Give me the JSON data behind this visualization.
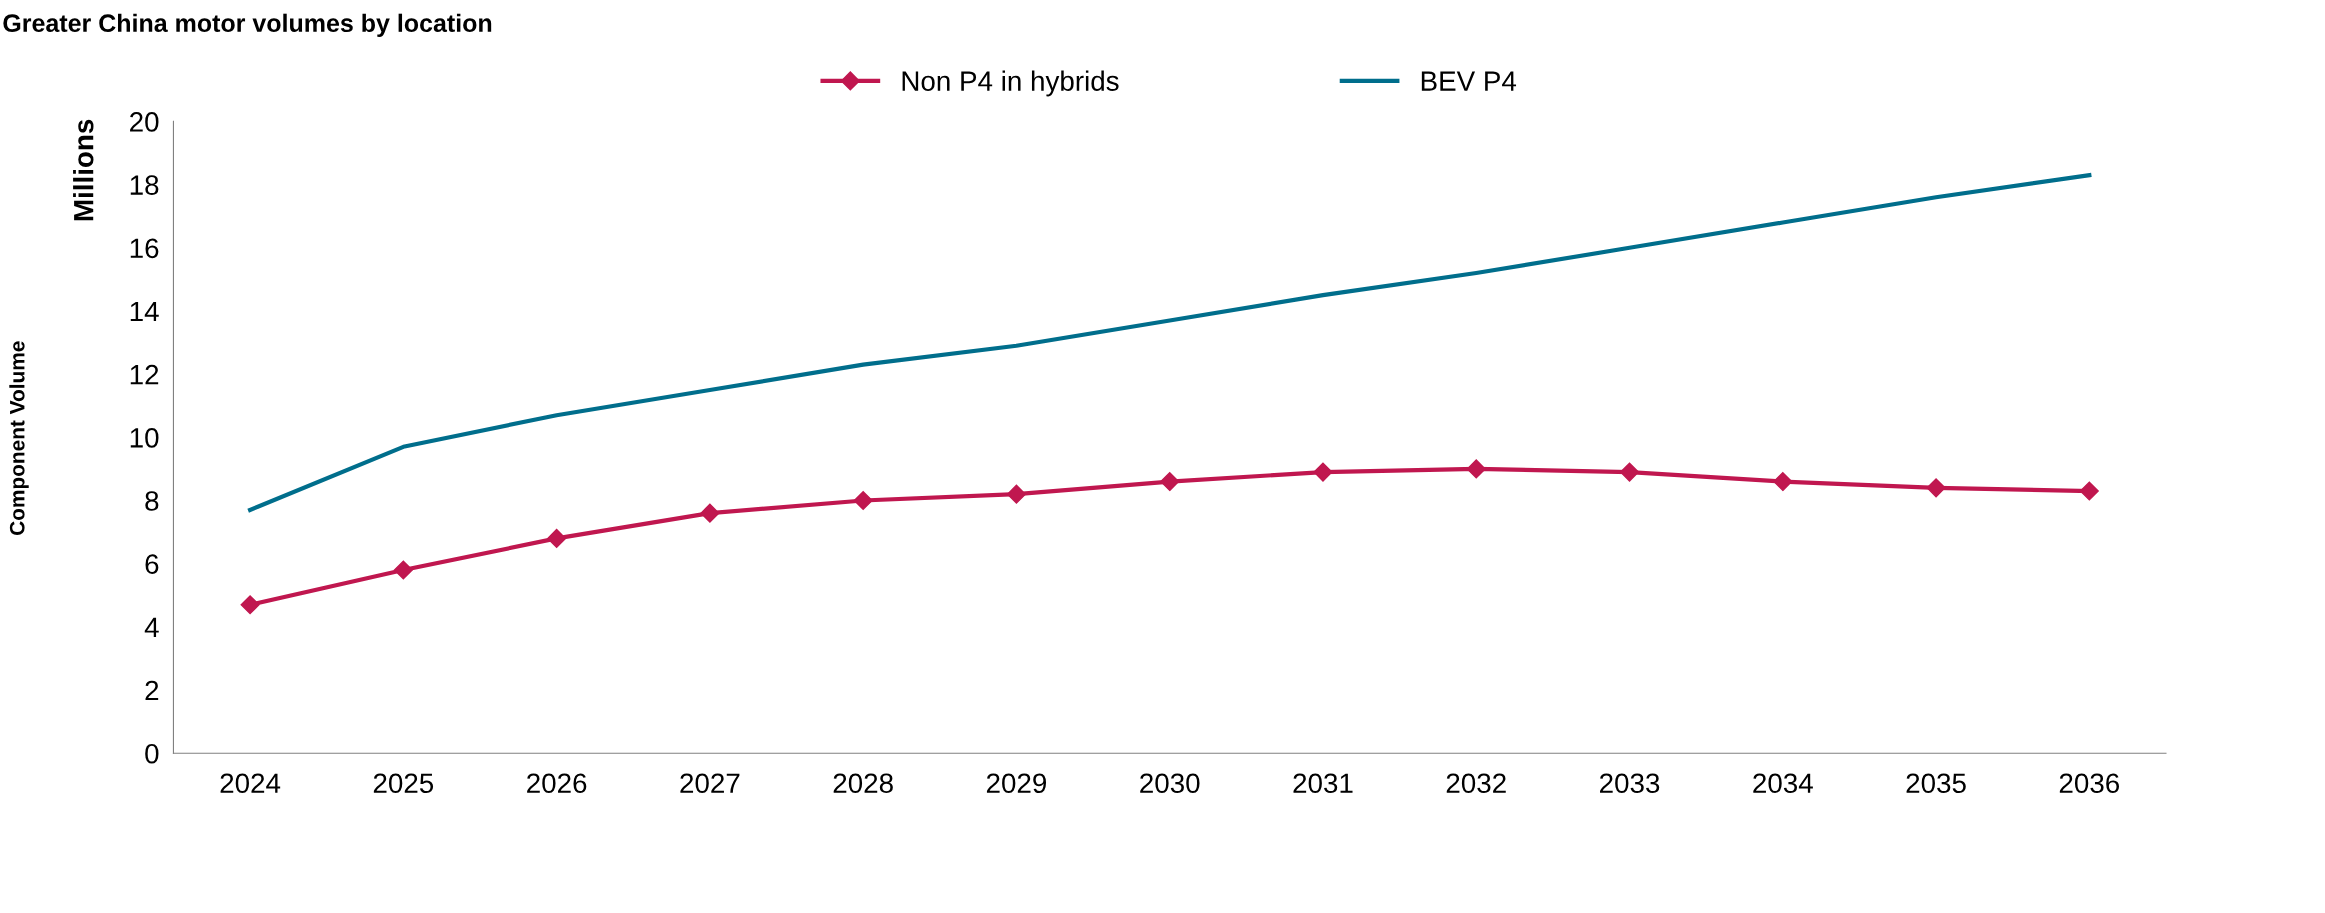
{
  "chart_data": {
    "type": "line",
    "title": "Greater China motor volumes by location",
    "ylabel": "Component Volume",
    "annotations": [
      "Millions"
    ],
    "categories": [
      "2024",
      "2025",
      "2026",
      "2027",
      "2028",
      "2029",
      "2030",
      "2031",
      "2032",
      "2033",
      "2034",
      "2035",
      "2036"
    ],
    "series": [
      {
        "name": "Non P4 in hybrids",
        "color": "#c0174f",
        "marker": "diamond",
        "values": [
          4.7,
          5.8,
          6.8,
          7.6,
          8.0,
          8.2,
          8.6,
          8.9,
          9.0,
          8.9,
          8.6,
          8.4,
          8.3
        ]
      },
      {
        "name": "BEV P4",
        "color": "#006e8c",
        "marker": "none",
        "values": [
          7.7,
          9.7,
          10.7,
          11.5,
          12.3,
          12.9,
          13.7,
          14.5,
          15.2,
          16.0,
          16.8,
          17.6,
          18.3
        ]
      }
    ],
    "ylim": [
      0,
      20
    ],
    "yticks": [
      0,
      2,
      4,
      6,
      8,
      10,
      12,
      14,
      16,
      18,
      20
    ],
    "grid": false,
    "legend": "top",
    "line_style": "solid"
  }
}
